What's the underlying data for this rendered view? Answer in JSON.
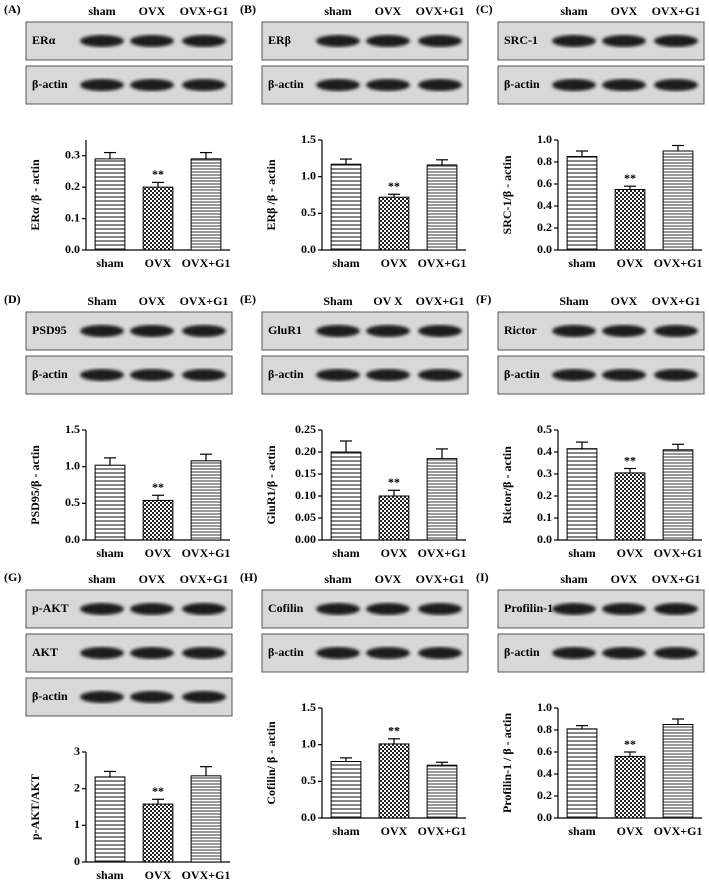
{
  "chart_data": [
    {
      "type": "bar",
      "panel": "(A)",
      "lanes": [
        "sham",
        "OVX",
        "OVX+G1"
      ],
      "blot_rows": [
        "ERα",
        "β-actin"
      ],
      "y_label": "ERα /β - actin",
      "categories": [
        "sham",
        "OVX",
        "OVX+G1"
      ],
      "values": [
        0.29,
        0.2,
        0.29
      ],
      "errors": [
        0.02,
        0.015,
        0.02
      ],
      "value_annotations": [
        null,
        "**",
        null
      ],
      "ylim": [
        0,
        0.35
      ],
      "yticks": [
        {
          "value": 0,
          "label": "0.0"
        },
        0.1,
        0.2,
        0.3
      ]
    },
    {
      "type": "bar",
      "panel": "(B)",
      "lanes": [
        "sham",
        "OVX",
        "OVX+G1"
      ],
      "blot_rows": [
        "ERβ",
        "β-actin"
      ],
      "y_label": "ERβ /β - actin",
      "categories": [
        "sham",
        "OVX",
        "OVX+G1"
      ],
      "values": [
        1.17,
        0.72,
        1.16
      ],
      "errors": [
        0.07,
        0.04,
        0.07
      ],
      "value_annotations": [
        null,
        "**",
        null
      ],
      "ylim": [
        0,
        1.5
      ],
      "yticks": [
        {
          "value": 0,
          "label": "0.0"
        },
        0.5,
        {
          "value": 1,
          "label": "1.0"
        },
        1.5
      ]
    },
    {
      "type": "bar",
      "panel": "(C)",
      "lanes": [
        "sham",
        "OVX",
        "OVX+G1"
      ],
      "blot_rows": [
        "SRC-1",
        "β-actin"
      ],
      "y_label": "SRC-1/β - actin",
      "categories": [
        "sham",
        "OVX",
        "OVX+G1"
      ],
      "values": [
        0.85,
        0.55,
        0.9
      ],
      "errors": [
        0.05,
        0.03,
        0.05
      ],
      "value_annotations": [
        null,
        "**",
        null
      ],
      "ylim": [
        0,
        1.0
      ],
      "yticks": [
        {
          "value": 0,
          "label": "0.0"
        },
        0.2,
        0.4,
        0.6,
        0.8,
        {
          "value": 1,
          "label": "1.0"
        }
      ]
    },
    {
      "type": "bar",
      "panel": "(D)",
      "lanes": [
        "Sham",
        "OVX",
        "OVX+G1"
      ],
      "blot_rows": [
        "PSD95",
        "β-actin"
      ],
      "y_label": "PSD95/β - actin",
      "categories": [
        "sham",
        "OVX",
        "OVX+G1"
      ],
      "values": [
        1.02,
        0.54,
        1.08
      ],
      "errors": [
        0.1,
        0.07,
        0.09
      ],
      "value_annotations": [
        null,
        "**",
        null
      ],
      "ylim": [
        0,
        1.5
      ],
      "yticks": [
        {
          "value": 0,
          "label": "0.0"
        },
        0.5,
        {
          "value": 1,
          "label": "1.0"
        },
        1.5
      ]
    },
    {
      "type": "bar",
      "panel": "(E)",
      "lanes": [
        "Sham",
        "OV X",
        "OVX+G1"
      ],
      "blot_rows": [
        "GluR1",
        "β-actin"
      ],
      "y_label": "GluR1/β - actin",
      "categories": [
        "sham",
        "OVX",
        "OVX+G1"
      ],
      "values": [
        0.2,
        0.1,
        0.185
      ],
      "errors": [
        0.025,
        0.013,
        0.022
      ],
      "value_annotations": [
        null,
        "**",
        null
      ],
      "ylim": [
        0,
        0.25
      ],
      "yticks": [
        {
          "value": 0,
          "label": "0.00"
        },
        0.05,
        {
          "value": 0.1,
          "label": "0.10"
        },
        0.15,
        {
          "value": 0.2,
          "label": "0.20"
        },
        0.25
      ]
    },
    {
      "type": "bar",
      "panel": "(F)",
      "lanes": [
        "Sham",
        "OVX",
        "OVX+G1"
      ],
      "blot_rows": [
        "Rictor",
        "β-actin"
      ],
      "y_label": "Rictor/β - actin",
      "categories": [
        "sham",
        "OVX",
        "OVX+G1"
      ],
      "values": [
        0.415,
        0.305,
        0.41
      ],
      "errors": [
        0.03,
        0.02,
        0.025
      ],
      "value_annotations": [
        null,
        "**",
        null
      ],
      "ylim": [
        0,
        0.5
      ],
      "yticks": [
        {
          "value": 0,
          "label": "0.0"
        },
        0.1,
        0.2,
        0.3,
        0.4,
        0.5
      ]
    },
    {
      "type": "bar",
      "panel": "(G)",
      "lanes": [
        "sham",
        "OVX",
        "OVX+G1"
      ],
      "blot_rows": [
        "p-AKT",
        "AKT",
        "β-actin"
      ],
      "y_label": "p-AKT/AKT",
      "categories": [
        "sham",
        "OVX",
        "OVX+G1"
      ],
      "values": [
        2.32,
        1.58,
        2.35
      ],
      "errors": [
        0.15,
        0.13,
        0.25
      ],
      "value_annotations": [
        null,
        "**",
        null
      ],
      "ylim": [
        0,
        3
      ],
      "yticks": [
        0,
        1,
        2,
        3
      ]
    },
    {
      "type": "bar",
      "panel": "(H)",
      "lanes": [
        "sham",
        "OVX",
        "OVX+G1"
      ],
      "blot_rows": [
        "Cofilin",
        "β-actin"
      ],
      "y_label": "Cofilin/ β - actin",
      "categories": [
        "sham",
        "OVX",
        "OVX+G1"
      ],
      "values": [
        0.77,
        1.01,
        0.72
      ],
      "errors": [
        0.05,
        0.07,
        0.04
      ],
      "value_annotations": [
        null,
        "**",
        null
      ],
      "ylim": [
        0,
        1.5
      ],
      "yticks": [
        {
          "value": 0,
          "label": "0.0"
        },
        0.5,
        {
          "value": 1,
          "label": "1.0"
        },
        1.5
      ]
    },
    {
      "type": "bar",
      "panel": "(I)",
      "lanes": [
        "sham",
        "OVX",
        "OVX+G1"
      ],
      "blot_rows": [
        "Profilin-1",
        "β-actin"
      ],
      "y_label": "Profilin-1 / β - actin",
      "categories": [
        "sham",
        "OVX",
        "OVX+G1"
      ],
      "values": [
        0.81,
        0.56,
        0.85
      ],
      "errors": [
        0.03,
        0.04,
        0.05
      ],
      "value_annotations": [
        null,
        "**",
        null
      ],
      "ylim": [
        0,
        1.0
      ],
      "yticks": [
        {
          "value": 0,
          "label": "0.0"
        },
        0.2,
        0.4,
        0.6,
        0.8,
        {
          "value": 1,
          "label": "1.0"
        }
      ]
    }
  ]
}
